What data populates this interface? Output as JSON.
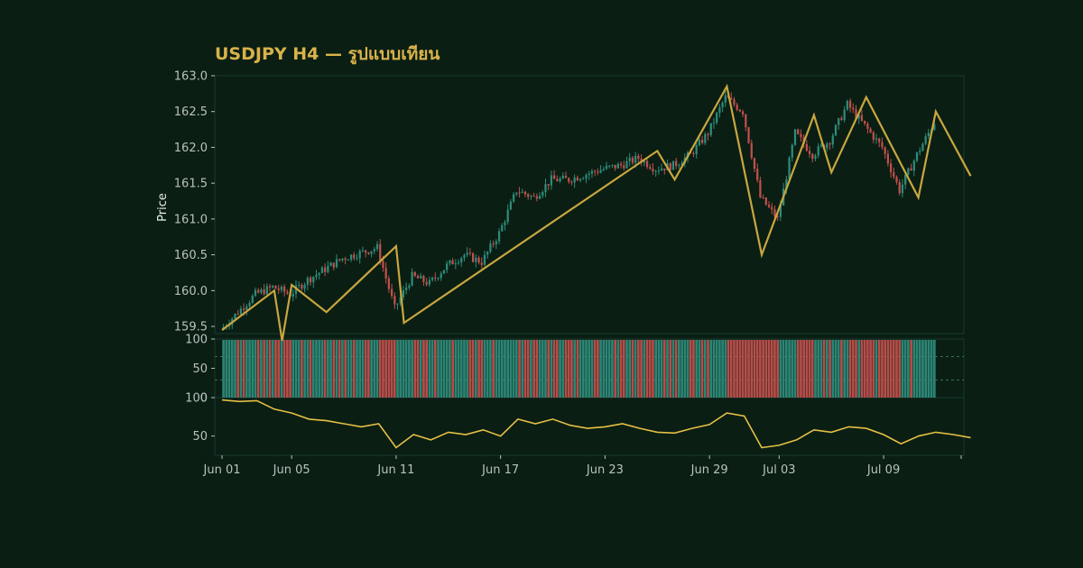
{
  "chart_data": {
    "type": "candlestick",
    "title": "USDJPY H4 — รูปแบบเทียน",
    "price_panel": {
      "ylabel": "Price",
      "ylim": [
        159.4,
        163.0
      ],
      "yticks": [
        "159.5",
        "160.0",
        "160.5",
        "161.0",
        "161.5",
        "162.0",
        "162.5",
        "163.0"
      ],
      "grid": false
    },
    "volume_panel": {
      "ylim": [
        0,
        100
      ],
      "yticks": [
        "0",
        "50",
        "100"
      ],
      "reference_lines": [
        70,
        30
      ]
    },
    "oscillator_panel": {
      "ylim": [
        25,
        100
      ],
      "yticks": [
        "50",
        "100"
      ]
    },
    "x_axis": {
      "type": "date",
      "start": "Jun 01",
      "end": "Jul 13",
      "tick_labels": [
        "Jun 01",
        "Jun 05",
        "Jun 11",
        "Jun 17",
        "Jun 23",
        "Jun 29",
        "Jul 03",
        "Jul 09"
      ]
    },
    "price_path": [
      [
        "Jun 01",
        159.45
      ],
      [
        "Jun 02",
        159.7
      ],
      [
        "Jun 03",
        159.95
      ],
      [
        "Jun 04",
        160.05
      ],
      [
        "Jun 05",
        159.95
      ],
      [
        "Jun 06",
        160.15
      ],
      [
        "Jun 07",
        160.3
      ],
      [
        "Jun 08",
        160.45
      ],
      [
        "Jun 10",
        160.6
      ],
      [
        "Jun 11",
        159.75
      ],
      [
        "Jun 12",
        160.2
      ],
      [
        "Jun 13",
        160.1
      ],
      [
        "Jun 14",
        160.35
      ],
      [
        "Jun 15",
        160.5
      ],
      [
        "Jun 16",
        160.4
      ],
      [
        "Jun 17",
        160.8
      ],
      [
        "Jun 18",
        161.4
      ],
      [
        "Jun 19",
        161.3
      ],
      [
        "Jun 20",
        161.55
      ],
      [
        "Jun 21",
        161.55
      ],
      [
        "Jun 23",
        161.7
      ],
      [
        "Jun 24",
        161.75
      ],
      [
        "Jun 25",
        161.85
      ],
      [
        "Jun 26",
        161.7
      ],
      [
        "Jun 27",
        161.75
      ],
      [
        "Jun 28",
        161.9
      ],
      [
        "Jun 29",
        162.2
      ],
      [
        "Jun 30",
        162.7
      ],
      [
        "Jul 01",
        162.5
      ],
      [
        "Jul 02",
        161.3
      ],
      [
        "Jul 03",
        161.0
      ],
      [
        "Jul 04",
        162.2
      ],
      [
        "Jul 05",
        161.9
      ],
      [
        "Jul 06",
        162.1
      ],
      [
        "Jul 07",
        162.6
      ],
      [
        "Jul 08",
        162.3
      ],
      [
        "Jul 09",
        162.0
      ],
      [
        "Jul 10",
        161.4
      ],
      [
        "Jul 11",
        161.9
      ],
      [
        "Jul 12",
        162.35
      ],
      [
        "Jul 13",
        162.2
      ],
      [
        "Jul 14",
        162.25
      ]
    ],
    "zigzag": [
      [
        "Jun 01",
        159.45
      ],
      [
        "Jun 04",
        160.0
      ],
      [
        "Jun 04",
        159.3
      ],
      [
        "Jun 05",
        160.08
      ],
      [
        "Jun 07",
        159.7
      ],
      [
        "Jun 11",
        160.62
      ],
      [
        "Jun 11",
        159.55
      ],
      [
        "Jun 26",
        161.95
      ],
      [
        "Jun 27",
        161.55
      ],
      [
        "Jun 30",
        162.85
      ],
      [
        "Jul 02",
        160.5
      ],
      [
        "Jul 05",
        162.45
      ],
      [
        "Jul 06",
        161.65
      ],
      [
        "Jul 08",
        162.7
      ],
      [
        "Jul 11",
        161.3
      ],
      [
        "Jul 12",
        162.5
      ],
      [
        "Jul 14",
        161.6
      ]
    ],
    "oscillator": [
      [
        "Jun 01",
        97
      ],
      [
        "Jun 02",
        95
      ],
      [
        "Jun 03",
        96
      ],
      [
        "Jun 04",
        85
      ],
      [
        "Jun 05",
        80
      ],
      [
        "Jun 06",
        72
      ],
      [
        "Jun 07",
        70
      ],
      [
        "Jun 08",
        66
      ],
      [
        "Jun 09",
        62
      ],
      [
        "Jun 10",
        66
      ],
      [
        "Jun 11",
        35
      ],
      [
        "Jun 12",
        52
      ],
      [
        "Jun 13",
        45
      ],
      [
        "Jun 14",
        55
      ],
      [
        "Jun 15",
        52
      ],
      [
        "Jun 16",
        58
      ],
      [
        "Jun 17",
        50
      ],
      [
        "Jun 18",
        72
      ],
      [
        "Jun 19",
        66
      ],
      [
        "Jun 20",
        72
      ],
      [
        "Jun 21",
        64
      ],
      [
        "Jun 22",
        60
      ],
      [
        "Jun 23",
        62
      ],
      [
        "Jun 24",
        66
      ],
      [
        "Jun 25",
        60
      ],
      [
        "Jun 26",
        55
      ],
      [
        "Jun 27",
        54
      ],
      [
        "Jun 28",
        60
      ],
      [
        "Jun 29",
        65
      ],
      [
        "Jun 30",
        80
      ],
      [
        "Jul 01",
        76
      ],
      [
        "Jul 02",
        35
      ],
      [
        "Jul 03",
        38
      ],
      [
        "Jul 04",
        45
      ],
      [
        "Jul 05",
        58
      ],
      [
        "Jul 06",
        55
      ],
      [
        "Jul 07",
        62
      ],
      [
        "Jul 08",
        60
      ],
      [
        "Jul 09",
        52
      ],
      [
        "Jul 10",
        40
      ],
      [
        "Jul 11",
        50
      ],
      [
        "Jul 12",
        55
      ],
      [
        "Jul 13",
        52
      ],
      [
        "Jul 14",
        48
      ]
    ],
    "colors": {
      "background": "#0a1e13",
      "panel_border": "#1b3b32",
      "up": "#2e8b7a",
      "down": "#c0504d",
      "zigzag": "#c9a640",
      "oscillator": "#e5bf45",
      "reference_line": "#3f6a5a",
      "title": "#d9b24a",
      "axis_text": "#b9c2bd"
    }
  }
}
